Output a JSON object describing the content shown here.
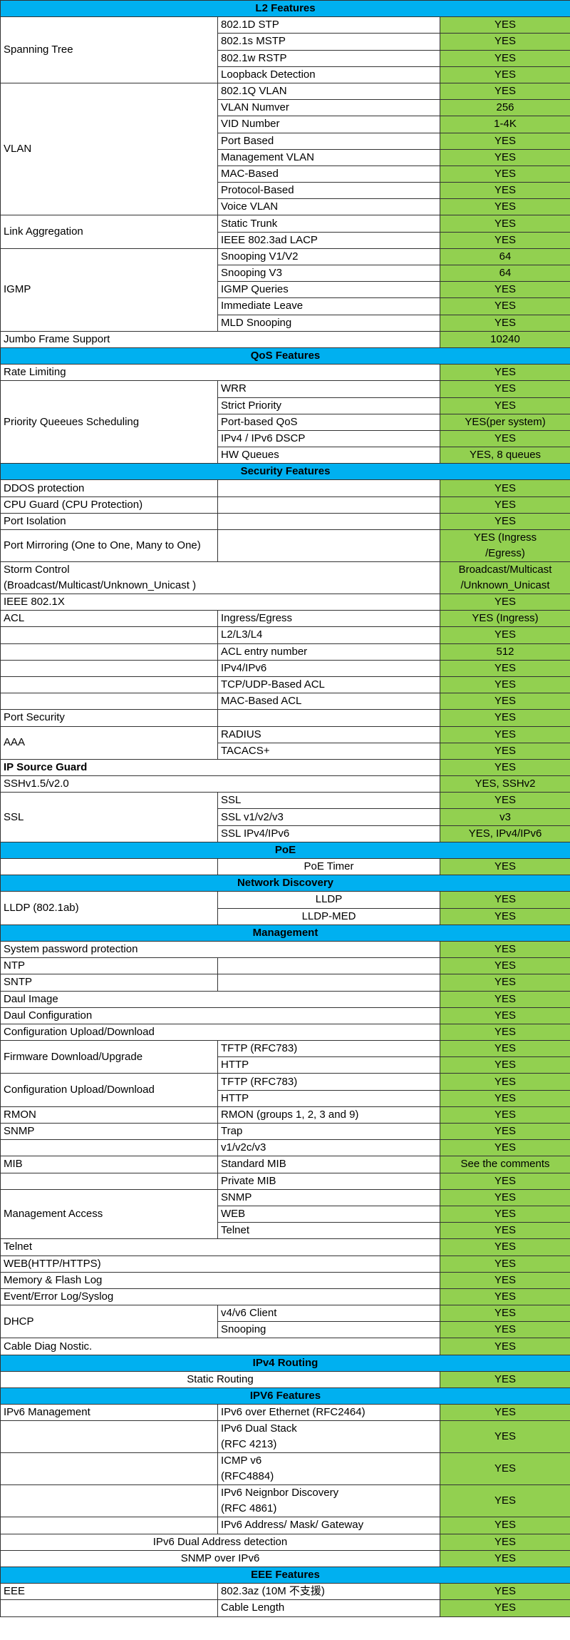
{
  "colors": {
    "section_header": "#00b0f0",
    "value_cell": "#92d050"
  },
  "rows": [
    {
      "section": "L2 Features"
    },
    {
      "a": "Spanning Tree",
      "rowspan": 4,
      "b": "802.1D STP",
      "v": "YES"
    },
    {
      "b": "802.1s MSTP",
      "v": "YES"
    },
    {
      "b": "802.1w RSTP",
      "v": "YES"
    },
    {
      "b": "Loopback Detection",
      "v": "YES"
    },
    {
      "a": "VLAN",
      "rowspan": 8,
      "b": "802.1Q VLAN",
      "v": "YES"
    },
    {
      "b": "VLAN Numver",
      "v": "256"
    },
    {
      "b": "VID Number",
      "v": "1-4K"
    },
    {
      "b": "Port Based",
      "v": "YES"
    },
    {
      "b": "Management VLAN",
      "v": "YES"
    },
    {
      "b": "MAC-Based",
      "v": "YES"
    },
    {
      "b": "Protocol-Based",
      "v": "YES"
    },
    {
      "b": "Voice VLAN",
      "v": "YES"
    },
    {
      "a": "Link Aggregation",
      "rowspan": 2,
      "b": "Static Trunk",
      "v": "YES"
    },
    {
      "b": "IEEE 802.3ad LACP",
      "v": "YES"
    },
    {
      "a": "IGMP",
      "rowspan": 5,
      "b": "Snooping V1/V2",
      "v": "64"
    },
    {
      "b": "Snooping V3",
      "v": "64"
    },
    {
      "b": "IGMP Queries",
      "v": "YES"
    },
    {
      "b": "Immediate Leave",
      "v": "YES"
    },
    {
      "b": "MLD Snooping",
      "v": "YES"
    },
    {
      "a": "Jumbo Frame Support",
      "merge": true,
      "v": "10240"
    },
    {
      "section": "QoS Features"
    },
    {
      "a": "Rate Limiting",
      "merge": true,
      "v": "YES"
    },
    {
      "a": "Priority Queeues Scheduling",
      "rowspan": 5,
      "b": "WRR",
      "v": "YES"
    },
    {
      "b": "Strict Priority",
      "v": "YES"
    },
    {
      "b": "Port-based QoS",
      "v": "YES(per system)"
    },
    {
      "b": "IPv4 / IPv6 DSCP",
      "v": "YES"
    },
    {
      "b": "HW Queues",
      "v": "YES, 8 queues"
    },
    {
      "section": "Security Features"
    },
    {
      "a": "DDOS protection",
      "b": "",
      "v": "YES"
    },
    {
      "a": "CPU Guard (CPU Protection)",
      "b": "",
      "v": "YES"
    },
    {
      "a": "Port Isolation",
      "b": "",
      "v": "YES"
    },
    {
      "a": "Port Mirroring (One to One, Many to One)",
      "b": "",
      "v": "YES (Ingress\n/Egress)"
    },
    {
      "a": "Storm Control\n(Broadcast/Multicast/Unknown_Unicast )",
      "merge": true,
      "v": "Broadcast/Multicast\n/Unknown_Unicast"
    },
    {
      "a": "IEEE 802.1X",
      "merge": true,
      "v": "YES"
    },
    {
      "a": "ACL",
      "b": "Ingress/Egress",
      "v": "YES (Ingress)"
    },
    {
      "a": "",
      "b": "L2/L3/L4",
      "v": "YES"
    },
    {
      "a": "",
      "b": "ACL entry number",
      "v": "512"
    },
    {
      "a": "",
      "b": "IPv4/IPv6",
      "v": "YES"
    },
    {
      "a": "",
      "b": "TCP/UDP-Based  ACL",
      "v": "YES"
    },
    {
      "a": "",
      "b": "MAC-Based  ACL",
      "v": "YES"
    },
    {
      "a": "Port Security",
      "b": "",
      "v": "YES"
    },
    {
      "a": "AAA",
      "rowspan": 2,
      "b": "RADIUS",
      "v": "YES"
    },
    {
      "b": "TACACS+",
      "v": "YES"
    },
    {
      "a": "IP Source Guard",
      "merge": true,
      "bold": true,
      "v": "YES"
    },
    {
      "a": "SSHv1.5/v2.0",
      "merge": true,
      "v": "YES, SSHv2"
    },
    {
      "a": "SSL",
      "rowspan": 3,
      "b": "SSL",
      "v": "YES"
    },
    {
      "b": "SSL v1/v2/v3",
      "v": "v3"
    },
    {
      "b": "SSL IPv4/IPv6",
      "v": "YES, IPv4/IPv6"
    },
    {
      "section": "PoE"
    },
    {
      "a": "",
      "b": "PoE Timer",
      "bcenter": true,
      "v": "YES"
    },
    {
      "section": "Network Discovery"
    },
    {
      "a": "LLDP (802.1ab)",
      "rowspan": 2,
      "b": "LLDP",
      "bcenter": true,
      "v": "YES"
    },
    {
      "b": "LLDP-MED",
      "bcenter": true,
      "v": "YES"
    },
    {
      "section": "Management"
    },
    {
      "a": "System password protection",
      "merge": true,
      "v": "YES"
    },
    {
      "a": "NTP",
      "b": "",
      "v": "YES"
    },
    {
      "a": "SNTP",
      "b": "",
      "v": "YES"
    },
    {
      "a": "Daul Image",
      "merge": true,
      "v": "YES"
    },
    {
      "a": "Daul Configuration",
      "merge": true,
      "v": "YES"
    },
    {
      "a": "Configuration Upload/Download",
      "merge": true,
      "v": "YES"
    },
    {
      "a": "Firmware Download/Upgrade",
      "rowspan": 2,
      "b": "TFTP (RFC783)",
      "v": "YES"
    },
    {
      "b": "HTTP",
      "v": "YES"
    },
    {
      "a": "Configuration Upload/Download",
      "rowspan": 2,
      "b": "TFTP (RFC783)",
      "v": "YES"
    },
    {
      "b": "HTTP",
      "v": "YES"
    },
    {
      "a": "RMON",
      "b": "RMON (groups 1, 2, 3 and 9)",
      "v": "YES"
    },
    {
      "a": "SNMP",
      "b": "Trap",
      "v": "YES"
    },
    {
      "a": "",
      "b": "v1/v2c/v3",
      "v": "YES"
    },
    {
      "a": "MIB",
      "b": "Standard MIB",
      "v": "See the comments"
    },
    {
      "a": "",
      "b": "Private MIB",
      "v": "YES"
    },
    {
      "a": "Management Access",
      "rowspan": 3,
      "b": "SNMP",
      "v": "YES"
    },
    {
      "b": "WEB",
      "v": "YES"
    },
    {
      "b": "Telnet",
      "v": "YES"
    },
    {
      "a": "Telnet",
      "merge": true,
      "v": "YES"
    },
    {
      "a": "WEB(HTTP/HTTPS)",
      "merge": true,
      "v": "YES"
    },
    {
      "a": "Memory & Flash Log",
      "merge": true,
      "v": "YES"
    },
    {
      "a": "Event/Error Log/Syslog",
      "merge": true,
      "v": "YES"
    },
    {
      "a": "DHCP",
      "rowspan": 2,
      "b": "v4/v6 Client",
      "v": "YES"
    },
    {
      "b": "Snooping",
      "v": "YES"
    },
    {
      "a": "Cable Diag Nostic.",
      "merge": true,
      "v": "YES"
    },
    {
      "section": "IPv4 Routing"
    },
    {
      "a": "Static Routing",
      "merge": true,
      "acenter": true,
      "v": "YES"
    },
    {
      "section": "IPV6 Features"
    },
    {
      "a": "IPv6 Management",
      "b": "IPv6 over Ethernet (RFC2464)",
      "v": "YES"
    },
    {
      "a": "",
      "b": "IPv6 Dual Stack\n(RFC 4213)",
      "v": "YES"
    },
    {
      "a": "",
      "b": "ICMP v6\n(RFC4884)",
      "v": "YES"
    },
    {
      "a": "",
      "b": "IPv6 Neignbor Discovery\n(RFC 4861)",
      "v": "YES"
    },
    {
      "a": "",
      "b": "IPv6 Address/ Mask/ Gateway",
      "v": "YES"
    },
    {
      "a": "IPv6 Dual Address detection",
      "merge": true,
      "acenter": true,
      "v": "YES"
    },
    {
      "a": "SNMP over IPv6",
      "merge": true,
      "acenter": true,
      "v": "YES"
    },
    {
      "section": "EEE Features"
    },
    {
      "a": "EEE",
      "b": "802.3az (10M 不支援)",
      "v": "YES"
    },
    {
      "a": "",
      "b": "Cable Length",
      "v": "YES"
    }
  ]
}
